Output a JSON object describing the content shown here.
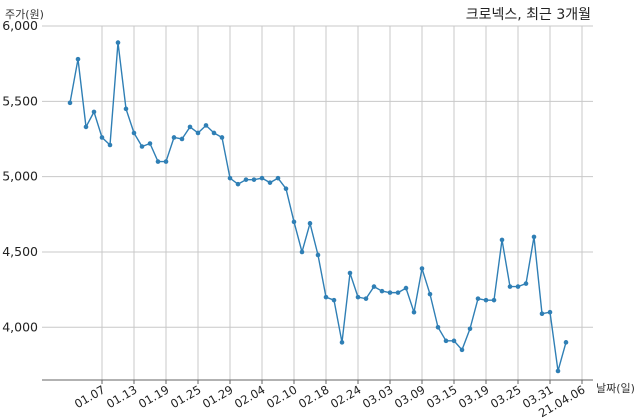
{
  "chart_data": {
    "type": "line",
    "title": "크로넥스, 최근 3개월",
    "ylabel": "주가(원)",
    "xlabel": "날짜(일)",
    "ylim": [
      3650,
      6000
    ],
    "yticks": [
      4000,
      4500,
      5000,
      5500,
      6000
    ],
    "ytick_labels": [
      "4,000",
      "4,500",
      "5,000",
      "5,500",
      "6,000"
    ],
    "xtick_labels": [
      "01.07",
      "01.13",
      "01.19",
      "01.25",
      "01.29",
      "02.04",
      "02.10",
      "02.18",
      "02.24",
      "03.03",
      "03.09",
      "03.15",
      "03.19",
      "03.25",
      "03.31",
      "21.04.06"
    ],
    "xtick_indices": [
      4,
      8,
      12,
      16,
      20,
      24,
      28,
      32,
      36,
      40,
      44,
      48,
      52,
      56,
      60,
      64
    ],
    "grid": true,
    "color": "#2f7fb5",
    "series": [
      {
        "values": [
          5490,
          5780,
          5330,
          5430,
          5260,
          5210,
          5890,
          5450,
          5290,
          5200,
          5220,
          5100,
          5100,
          5260,
          5250,
          5330,
          5290,
          5340,
          5290,
          5260,
          4990,
          4950,
          4980,
          4980,
          4990,
          4960,
          4990,
          4920,
          4700,
          4500,
          4690,
          4480,
          4200,
          4180,
          3900,
          4360,
          4200,
          4190,
          4270,
          4240,
          4230,
          4230,
          4260,
          4100,
          4390,
          4220,
          4000,
          3910,
          3910,
          3850,
          3990,
          4190,
          4180,
          4180,
          4580,
          4270,
          4270,
          4290,
          4600,
          4090,
          4100,
          3710,
          3900
        ]
      }
    ]
  }
}
